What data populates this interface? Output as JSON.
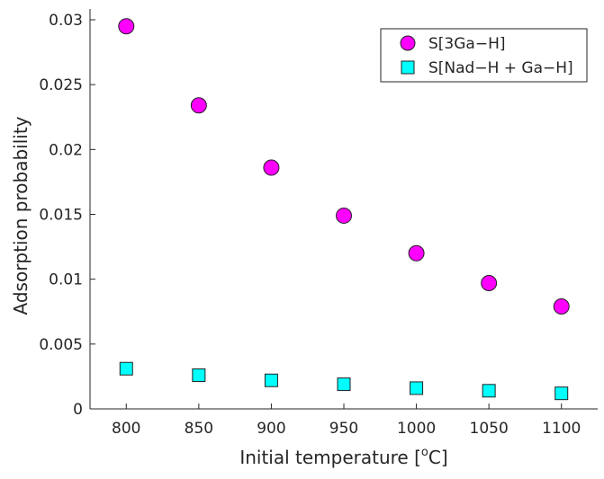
{
  "chart_data": {
    "type": "scatter",
    "xlabel": "Initial temperature [",
    "xlabel_sup": "o",
    "xlabel_unit": "C]",
    "ylabel": "Adsorption probability",
    "xlim": [
      775,
      1125
    ],
    "ylim": [
      0,
      0.03
    ],
    "x_ticks": [
      800,
      850,
      900,
      950,
      1000,
      1050,
      1100
    ],
    "x_tick_labels": [
      "800",
      "850",
      "900",
      "950",
      "1000",
      "1050",
      "1100"
    ],
    "y_ticks": [
      0,
      0.005,
      0.01,
      0.015,
      0.02,
      0.025,
      0.03
    ],
    "y_tick_labels": [
      "0",
      "0.005",
      "0.01",
      "0.015",
      "0.02",
      "0.025",
      "0.03"
    ],
    "grid": false,
    "legend_position": "top-right",
    "series": [
      {
        "name": "S[3Ga−H]",
        "marker": "circle",
        "color": "#ff00ff",
        "x": [
          800,
          850,
          900,
          950,
          1000,
          1050,
          1100
        ],
        "y": [
          0.0295,
          0.0234,
          0.0186,
          0.0149,
          0.012,
          0.0097,
          0.0079
        ]
      },
      {
        "name": "S[Nad−H + Ga−H]",
        "marker": "square",
        "color": "#00ffff",
        "x": [
          800,
          850,
          900,
          950,
          1000,
          1050,
          1100
        ],
        "y": [
          0.0031,
          0.0026,
          0.0022,
          0.0019,
          0.0016,
          0.0014,
          0.0012
        ]
      }
    ]
  }
}
